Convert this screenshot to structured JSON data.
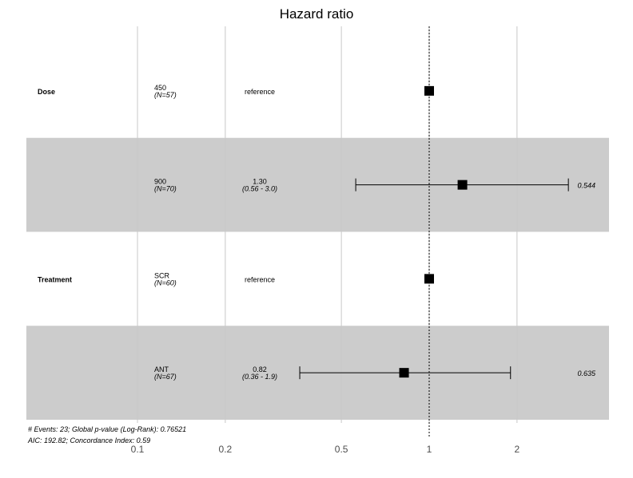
{
  "chart_data": {
    "type": "forest",
    "title": "Hazard ratio",
    "x_scale": "log",
    "xlim": [
      0.08,
      4.4
    ],
    "x_ticks": [
      0.1,
      0.2,
      0.5,
      1,
      2
    ],
    "x_tick_labels": [
      "0.1",
      "0.2",
      "0.5",
      "1",
      "2"
    ],
    "reference_line": 1,
    "rows": [
      {
        "variable": "Dose",
        "level": "450",
        "n": "(N=57)",
        "estimate_label": "reference",
        "ci_label": "",
        "hr": 1,
        "lower": null,
        "upper": null,
        "p": "",
        "shaded": false
      },
      {
        "variable": "",
        "level": "900",
        "n": "(N=70)",
        "estimate_label": "1.30",
        "ci_label": "(0.56 - 3.0)",
        "hr": 1.3,
        "lower": 0.56,
        "upper": 3.0,
        "p": "0.544",
        "shaded": true
      },
      {
        "variable": "Treatment",
        "level": "SCR",
        "n": "(N=60)",
        "estimate_label": "reference",
        "ci_label": "",
        "hr": 1,
        "lower": null,
        "upper": null,
        "p": "",
        "shaded": false
      },
      {
        "variable": "",
        "level": "ANT",
        "n": "(N=67)",
        "estimate_label": "0.82",
        "ci_label": "(0.36 - 1.9)",
        "hr": 0.82,
        "lower": 0.36,
        "upper": 1.9,
        "p": "0.635",
        "shaded": true
      }
    ],
    "footer": [
      "# Events: 23; Global p-value (Log-Rank): 0.76521",
      "AIC: 192.82; Concordance Index: 0.59"
    ],
    "colors": {
      "shade": "#cccccc",
      "grid": "#c8c8c8",
      "point": "#000000"
    }
  }
}
